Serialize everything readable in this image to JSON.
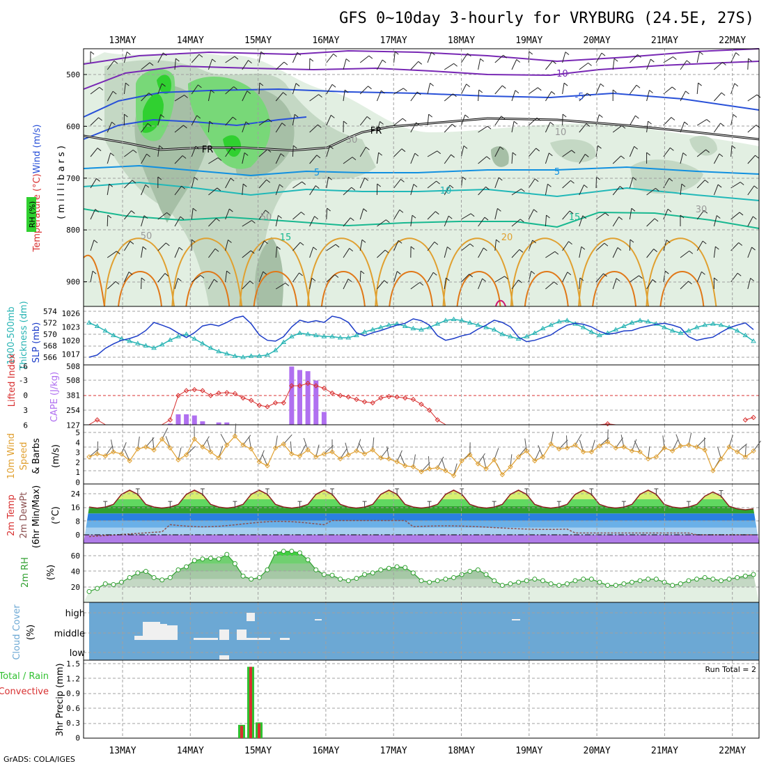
{
  "title": "GFS 0~10day 3-hourly for VRYBURG (24.5E, 27S)",
  "footer": "GrADS: COLA/IGES",
  "dates": [
    "13MAY",
    "14MAY",
    "15MAY",
    "16MAY",
    "17MAY",
    "18MAY",
    "19MAY",
    "20MAY",
    "21MAY",
    "22MAY"
  ],
  "colors": {
    "rh_light": "#e2efe2",
    "rh_mid": "#c4d8c4",
    "rh_dark": "#a6bfa6",
    "rh_g1": "#78d878",
    "rh_g2": "#30d030",
    "wind_line": "#000000",
    "slp": "#1c3cc8",
    "thick": "#28b4b4",
    "li": "#d83030",
    "cape": "#b070f0",
    "wspd": "#e0a030",
    "rh2m": "#30a030",
    "cloud_bg": "#6ca8d4",
    "precip_total": "#30c030",
    "precip_conv": "#d83030"
  },
  "panels": {
    "upper": {
      "ylabel_parts": [
        "RH (%)",
        "Temperature (°C)",
        "Wind (m/s)",
        "(millibars)"
      ],
      "ticks": [
        "500",
        "600",
        "700",
        "800",
        "900"
      ],
      "contour_labels": [
        "-10",
        "-5",
        "FR",
        "FR",
        "5",
        "5",
        "10",
        "15",
        "15",
        "20",
        "50",
        "50",
        "30",
        "30",
        "10"
      ]
    },
    "slp": {
      "ylabel_parts": [
        "1000-500mb",
        "Thickness (dm)",
        "SLP (mb)"
      ],
      "left_ticks": [
        "574",
        "572",
        "570",
        "568",
        "566"
      ],
      "right_ticks": [
        "1026",
        "1023",
        "1020",
        "1017"
      ],
      "chart_data": {
        "type": "line",
        "series": [
          {
            "name": "SLP (mb)",
            "values": [
              1016,
              1016.5,
              1018,
              1019,
              1019.8,
              1020.2,
              1020.8,
              1022,
              1023.8,
              1023.2,
              1022.5,
              1021.4,
              1020.4,
              1021.5,
              1023,
              1023.4,
              1023,
              1023.8,
              1024.8,
              1025.2,
              1023.5,
              1021,
              1019.8,
              1019.6,
              1020.6,
              1022.8,
              1024.3,
              1023.8,
              1024.2,
              1023.8,
              1025.2,
              1024.8,
              1023.8,
              1021.5,
              1020.8,
              1021.5,
              1022,
              1022.6,
              1023.2,
              1023.6,
              1024.6,
              1024.2,
              1023.2,
              1020.8,
              1019.8,
              1020.2,
              1020.8,
              1021.2,
              1022.3,
              1023.2,
              1024.3,
              1023.8,
              1022.8,
              1020.5,
              1019.5,
              1019.8,
              1020.4,
              1021,
              1022.2,
              1023.2,
              1023.6,
              1023.4,
              1022.8,
              1021.8,
              1021.2,
              1021.4,
              1021.9,
              1022,
              1022.6,
              1023,
              1023.4,
              1023.6,
              1023.2,
              1022.6,
              1020.6,
              1019.8,
              1020.2,
              1020.5,
              1021.6,
              1022.6,
              1023.2,
              1023.7,
              1022.2
            ]
          },
          {
            "name": "1000-500mb Thickness (dm)",
            "values": [
              572,
              571.4,
              570.6,
              569.8,
              569.2,
              568.8,
              568.4,
              568,
              567.6,
              568.2,
              569,
              569.6,
              570,
              569.2,
              568.4,
              567.6,
              567,
              566.6,
              566.2,
              566,
              566.2,
              566.2,
              566.4,
              567.2,
              568.6,
              569.6,
              570.2,
              570,
              569.8,
              569.6,
              569.6,
              569.4,
              569.4,
              569.8,
              570.4,
              570.8,
              571.2,
              571.6,
              571.8,
              571.4,
              571,
              570.8,
              571.2,
              571.8,
              572.4,
              572.6,
              572.4,
              572,
              571.6,
              571.2,
              570.8,
              570,
              569.6,
              569.2,
              569.6,
              570.2,
              571,
              571.6,
              572.2,
              572.4,
              571.8,
              571.2,
              570.4,
              569.8,
              570.2,
              570.8,
              571.4,
              572,
              572.4,
              572.2,
              571.8,
              571.2,
              570.6,
              570.2,
              570.6,
              571.2,
              571.6,
              571.8,
              571.6,
              571.2,
              570.6,
              569.8,
              568.8
            ]
          }
        ]
      }
    },
    "cape": {
      "ylabel_parts": [
        "Lifted Index",
        "CAPE (J/kg)"
      ],
      "left_ticks": [
        "-3",
        "0",
        "3",
        "6"
      ],
      "right_ticks": [
        "508",
        "381",
        "254",
        "127"
      ],
      "chart_data": {
        "type": "bar",
        "series": [
          {
            "name": "CAPE (J/kg)",
            "values": [
              0,
              0,
              0,
              0,
              0,
              0,
              0,
              0,
              0,
              0,
              10,
              90,
              90,
              80,
              30,
              0,
              20,
              20,
              0,
              0,
              0,
              0,
              0,
              0,
              0,
              500,
              470,
              460,
              380,
              110,
              0,
              0,
              0,
              0,
              0,
              0,
              0,
              0,
              0,
              0,
              0,
              0,
              0,
              0,
              0,
              0,
              0,
              0,
              0,
              0,
              0,
              0,
              0,
              0,
              0,
              0,
              0,
              0,
              0,
              0,
              0,
              0,
              0,
              0,
              0,
              0,
              0,
              0,
              0,
              0,
              0,
              0,
              0,
              0,
              0,
              0,
              0,
              0,
              0,
              0,
              0,
              0,
              0
            ]
          },
          {
            "name": "Lifted Index",
            "values": [
              6,
              5,
              6,
              6,
              6,
              6,
              6,
              6,
              6,
              6,
              5,
              0,
              -1,
              -1.2,
              -1,
              0,
              -0.5,
              -0.6,
              -0.4,
              0.5,
              1,
              2,
              2.3,
              1.5,
              1.5,
              -2,
              -2,
              -2.5,
              -2,
              -1.5,
              -0.5,
              0,
              0.3,
              0.8,
              1.3,
              1.5,
              0.5,
              0.2,
              0.3,
              0.5,
              0.8,
              1.8,
              3,
              5,
              6,
              6,
              6,
              6,
              6,
              6,
              6,
              6,
              6,
              6,
              6,
              6,
              6,
              6,
              6,
              6,
              6,
              6,
              6,
              6,
              5.8,
              6,
              6,
              6,
              6,
              6,
              6,
              6,
              6,
              6,
              6,
              6,
              6,
              6,
              6,
              6,
              6,
              5,
              4.5
            ]
          }
        ]
      }
    },
    "wind10": {
      "ylabel_parts": [
        "10m Wind",
        "Speed",
        "& Barbs"
      ],
      "unit": "(m/s)",
      "left_ticks": [
        "5",
        "4",
        "3",
        "2",
        "1",
        "0"
      ],
      "chart_data": {
        "type": "line",
        "series": [
          {
            "name": "10m Wind Speed",
            "values": [
              2.6,
              2.9,
              2.7,
              3.1,
              2.9,
              2.2,
              3.4,
              3.6,
              3.3,
              4.4,
              3.5,
              2.3,
              2.8,
              4.4,
              3.6,
              3.1,
              2.5,
              3.8,
              4.7,
              3.8,
              3.4,
              2.1,
              1.7,
              3.5,
              3.9,
              2.9,
              2.7,
              3.3,
              2.6,
              2.9,
              3.1,
              2.4,
              2.8,
              3.2,
              2.9,
              3.3,
              2.5,
              2.4,
              2.1,
              1.7,
              1.6,
              1.1,
              1.4,
              1.5,
              1.2,
              0.7,
              2.2,
              2.8,
              1.9,
              1.4,
              2.3,
              0.8,
              1.6,
              2.6,
              3.2,
              2.2,
              2.6,
              3.9,
              3.4,
              3.5,
              3.8,
              3.1,
              3.1,
              3.7,
              4.1,
              3.5,
              3.6,
              3.2,
              3.1,
              2.4,
              2.6,
              3.5,
              3.2,
              3.7,
              3.8,
              3.6,
              3.3,
              1.2,
              2.4,
              3.6,
              3.1,
              2.6,
              3.2
            ]
          }
        ]
      }
    },
    "temp2m": {
      "ylabel_parts": [
        "2m Temp",
        "2m DewPt",
        "(6hr Min/Max)"
      ],
      "unit": "(°C)",
      "left_ticks": [
        "24",
        "16",
        "8",
        "0"
      ]
    },
    "rh2m": {
      "ylabel": "2m RH",
      "unit": "(%)",
      "left_ticks": [
        "60",
        "40",
        "20"
      ],
      "chart_data": {
        "type": "area",
        "series": [
          {
            "name": "2m RH",
            "values": [
              14,
              18,
              24,
              23,
              26,
              32,
              38,
              40,
              32,
              29,
              32,
              42,
              46,
              54,
              56,
              57,
              56,
              62,
              50,
              34,
              30,
              32,
              42,
              64,
              66,
              66,
              64,
              55,
              42,
              36,
              35,
              30,
              28,
              31,
              36,
              38,
              42,
              44,
              46,
              45,
              38,
              28,
              26,
              28,
              30,
              32,
              36,
              40,
              42,
              36,
              28,
              22,
              24,
              26,
              28,
              30,
              28,
              24,
              22,
              24,
              28,
              30,
              30,
              26,
              22,
              22,
              24,
              26,
              28,
              30,
              30,
              26,
              22,
              24,
              28,
              30,
              32,
              30,
              28,
              30,
              32,
              34,
              36
            ]
          }
        ]
      }
    },
    "cloud": {
      "ylabel": "Cloud Cover",
      "unit": "(%)",
      "levels": [
        "high",
        "middle",
        "low"
      ]
    },
    "precip": {
      "ylabel_parts": [
        "Total / Rain",
        "Convective"
      ],
      "unit": "3hr Precip (mm)",
      "left_ticks": [
        "1.5",
        "1.2",
        "0.9",
        "0.6",
        "0.3",
        "0"
      ],
      "run_total": "Run Total = 2",
      "chart_data": {
        "type": "bar",
        "categories": [
          "14MAY 21Z",
          "15MAY 00Z",
          "15MAY 03Z"
        ],
        "series": [
          {
            "name": "Total",
            "values": [
              0.27,
              1.45,
              0.32
            ]
          },
          {
            "name": "Convective",
            "values": [
              0.25,
              1.45,
              0.3
            ]
          }
        ]
      }
    }
  }
}
